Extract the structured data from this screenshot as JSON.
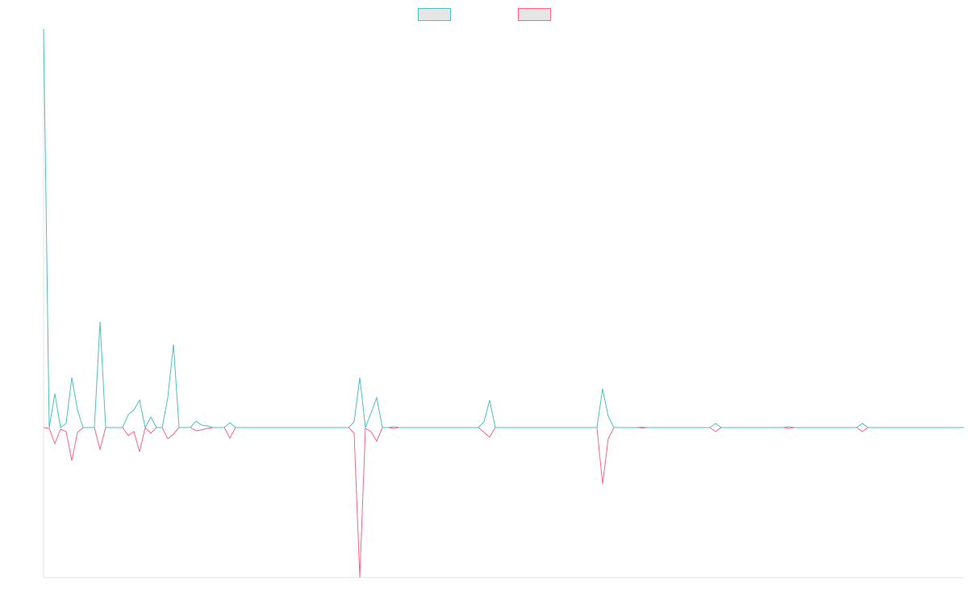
{
  "chart_data": {
    "type": "line",
    "xlim": [
      0,
      163
    ],
    "ylim": [
      -186,
      494
    ],
    "series": [
      {
        "color": "#4bc0c0",
        "values": [
          494,
          0,
          42,
          0,
          5,
          62,
          22,
          0,
          0,
          0,
          131,
          0,
          0,
          0,
          0,
          16,
          22,
          34,
          0,
          13,
          0,
          0,
          37,
          103,
          0,
          0,
          0,
          8,
          3,
          2,
          0,
          0,
          0,
          6,
          0,
          0,
          0,
          0,
          0,
          0,
          0,
          0,
          0,
          0,
          0,
          0,
          0,
          0,
          0,
          0,
          0,
          0,
          0,
          0,
          0,
          7,
          62,
          0,
          18,
          37,
          0,
          0,
          1,
          0,
          0,
          0,
          0,
          0,
          0,
          0,
          0,
          0,
          0,
          0,
          0,
          0,
          0,
          0,
          7,
          34,
          0,
          0,
          0,
          0,
          0,
          0,
          0,
          0,
          0,
          0,
          0,
          0,
          0,
          0,
          0,
          0,
          0,
          0,
          0,
          48,
          14,
          0,
          0,
          0,
          0,
          0,
          0.5,
          0,
          0,
          0,
          0,
          0,
          0,
          0,
          0,
          0,
          0,
          0,
          0,
          5,
          0,
          0,
          0,
          0,
          0,
          0,
          0,
          0,
          0,
          0,
          0,
          0,
          1,
          0,
          0,
          0,
          0,
          0,
          0,
          0,
          0,
          0,
          0,
          0,
          0,
          5,
          0,
          0,
          0,
          0,
          0,
          0,
          0,
          0,
          0,
          0,
          0,
          0,
          0,
          0,
          0,
          0,
          0,
          0
        ]
      },
      {
        "color": "#ff6384",
        "values": [
          0,
          -1,
          -20,
          -2,
          -5,
          -41,
          -6,
          0,
          0,
          0,
          -27,
          0,
          0,
          0,
          0,
          -10,
          -5,
          -30,
          0,
          -7,
          0,
          0,
          -14,
          -8,
          0,
          0,
          0,
          -4,
          -3,
          -1,
          0,
          0,
          0,
          -13,
          0,
          0,
          0,
          0,
          0,
          0,
          0,
          0,
          0,
          0,
          0,
          0,
          0,
          0,
          0,
          0,
          0,
          0,
          0,
          0,
          0,
          -7,
          -186,
          -1,
          -5,
          -17,
          0,
          0,
          -1,
          0,
          0,
          0,
          0,
          0,
          0,
          0,
          0,
          0,
          0,
          0,
          0,
          0,
          0,
          0,
          -6,
          -12,
          0,
          0,
          0,
          0,
          0,
          0,
          0,
          0,
          0,
          0,
          0,
          0,
          0,
          0,
          0,
          0,
          0,
          0,
          0,
          -70,
          -14,
          0,
          0,
          0,
          0,
          0,
          -0.5,
          0,
          0,
          0,
          0,
          0,
          0,
          0,
          0,
          0,
          0,
          0,
          0,
          -5,
          0,
          0,
          0,
          0,
          0,
          0,
          0,
          0,
          0,
          0,
          0,
          0,
          -1,
          0,
          0,
          0,
          0,
          0,
          0,
          0,
          0,
          0,
          0,
          0,
          0,
          -5,
          0,
          0,
          0,
          0,
          0,
          0,
          0,
          0,
          0,
          0,
          0,
          0,
          0,
          0,
          0,
          0,
          0,
          0
        ]
      }
    ]
  }
}
